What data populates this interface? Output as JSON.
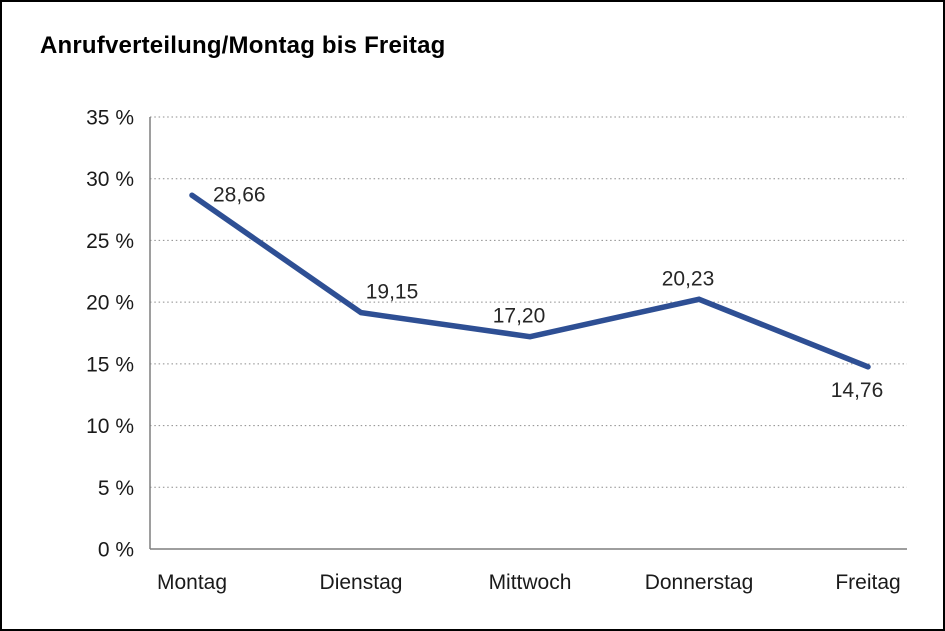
{
  "chart_data": {
    "type": "line",
    "title": "Anrufverteilung/Montag bis Freitag",
    "categories": [
      "Montag",
      "Dienstag",
      "Mittwoch",
      "Donnerstag",
      "Freitag"
    ],
    "values": [
      28.66,
      19.15,
      17.2,
      20.23,
      14.76
    ],
    "value_labels": [
      "28,66",
      "19,15",
      "17,20",
      "20,23",
      "14,76"
    ],
    "ylabel": "",
    "xlabel": "",
    "ylim": [
      0,
      35
    ],
    "ytick_step": 5,
    "ytick_labels": [
      "0 %",
      "5 %",
      "10 %",
      "15 %",
      "20 %",
      "25 %",
      "30 %",
      "35 %"
    ],
    "grid": "horizontal-dotted",
    "legend": "none",
    "line_color": "#2e4f94",
    "axis_color": "#7f7f7f",
    "grid_color": "#8c8c8c",
    "text_color": "#1a1a1a",
    "label_placements": [
      "right",
      "above-right",
      "above",
      "above",
      "below"
    ]
  }
}
